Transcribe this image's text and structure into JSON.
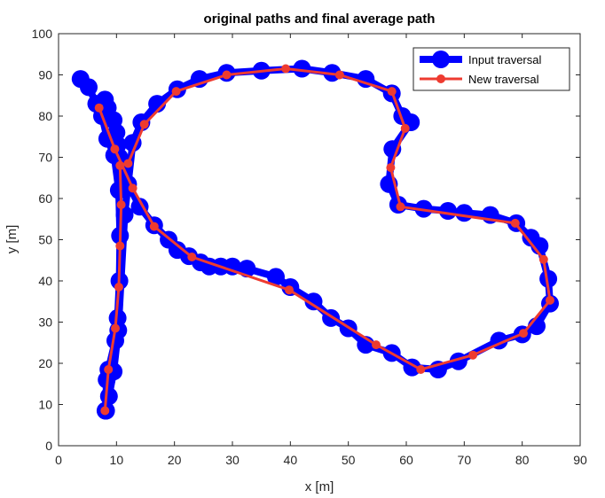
{
  "chart_data": {
    "type": "line",
    "title": "original paths and final average path",
    "xlabel": "x [m]",
    "ylabel": "y [m]",
    "xlim": [
      0,
      90
    ],
    "ylim": [
      0,
      100
    ],
    "xticks": [
      0,
      10,
      20,
      30,
      40,
      50,
      60,
      70,
      80,
      90
    ],
    "yticks": [
      0,
      10,
      20,
      30,
      40,
      50,
      60,
      70,
      80,
      90,
      100
    ],
    "grid": false,
    "legend_position": "top-right",
    "series": [
      {
        "name": "Input traversal",
        "color": "#0000FF",
        "marker": "large-circle",
        "x": [
          3.8,
          5.2,
          6.5,
          7.5,
          8.4,
          9.6,
          10.4,
          10.6,
          10.5,
          10.2,
          9.8,
          8.6,
          8.3,
          8.1,
          8.2,
          8.7,
          9.5,
          10.3,
          11.4,
          12.8,
          14.3,
          17.0,
          20.5,
          24.3,
          29.0,
          35.0,
          42.0,
          47.2,
          53.0,
          57.5,
          59.3,
          60.8,
          57.6,
          57.0,
          58.6,
          63.0,
          67.2,
          70.0,
          74.5,
          79.0,
          81.5,
          83.0,
          84.5,
          84.8,
          82.5,
          80.0,
          76.0,
          69.0,
          65.5,
          61.0,
          57.5,
          53.0,
          50.0,
          47.0,
          44.0,
          40.0,
          37.5,
          32.5,
          30.0,
          28.0,
          26.0,
          24.5,
          22.5,
          20.5,
          19.0,
          16.5,
          14.0,
          12.0,
          11.0,
          10.5,
          10.2,
          10.0,
          9.5,
          8.5,
          8.0
        ],
        "y": [
          89.0,
          87.0,
          83.0,
          80.0,
          74.5,
          70.5,
          62.0,
          51.0,
          40.0,
          31.0,
          25.5,
          18.5,
          16.0,
          8.5,
          8.5,
          12.0,
          18.0,
          28.0,
          56.0,
          73.5,
          78.5,
          83.0,
          86.5,
          89.0,
          90.5,
          91.0,
          91.5,
          90.5,
          89.0,
          85.5,
          80.0,
          78.5,
          72.0,
          63.5,
          58.5,
          57.5,
          57.0,
          56.5,
          56.0,
          54.0,
          50.5,
          48.5,
          40.5,
          34.5,
          29.0,
          27.0,
          25.5,
          20.5,
          18.5,
          19.0,
          22.5,
          24.5,
          28.5,
          31.0,
          35.0,
          38.5,
          41.0,
          43.0,
          43.5,
          43.5,
          43.5,
          44.5,
          46.0,
          47.5,
          50.0,
          53.5,
          58.0,
          63.5,
          67.0,
          70.0,
          73.0,
          76.0,
          79.0,
          82.0,
          84.0
        ]
      },
      {
        "name": "New traversal",
        "color": "#EE3B30",
        "marker": "small-circle",
        "x": [
          8.0,
          8.6,
          9.8,
          10.4,
          10.6,
          10.8,
          10.6,
          12.0,
          14.8,
          20.3,
          29.0,
          39.2,
          48.5,
          57.5,
          59.8,
          57.3,
          59.0,
          78.8,
          83.7,
          84.8,
          80.2,
          71.5,
          62.5,
          54.8,
          39.8,
          23.0,
          16.5,
          12.8,
          9.7,
          7.0
        ],
        "y": [
          8.5,
          18.5,
          28.5,
          38.5,
          48.5,
          58.5,
          68.0,
          68.5,
          78.0,
          86.0,
          90.0,
          91.5,
          90.0,
          86.0,
          77.0,
          67.5,
          58.0,
          54.0,
          45.2,
          35.3,
          27.3,
          22.0,
          18.5,
          24.5,
          37.8,
          45.8,
          53.2,
          62.5,
          72.0,
          82.0
        ]
      }
    ]
  }
}
